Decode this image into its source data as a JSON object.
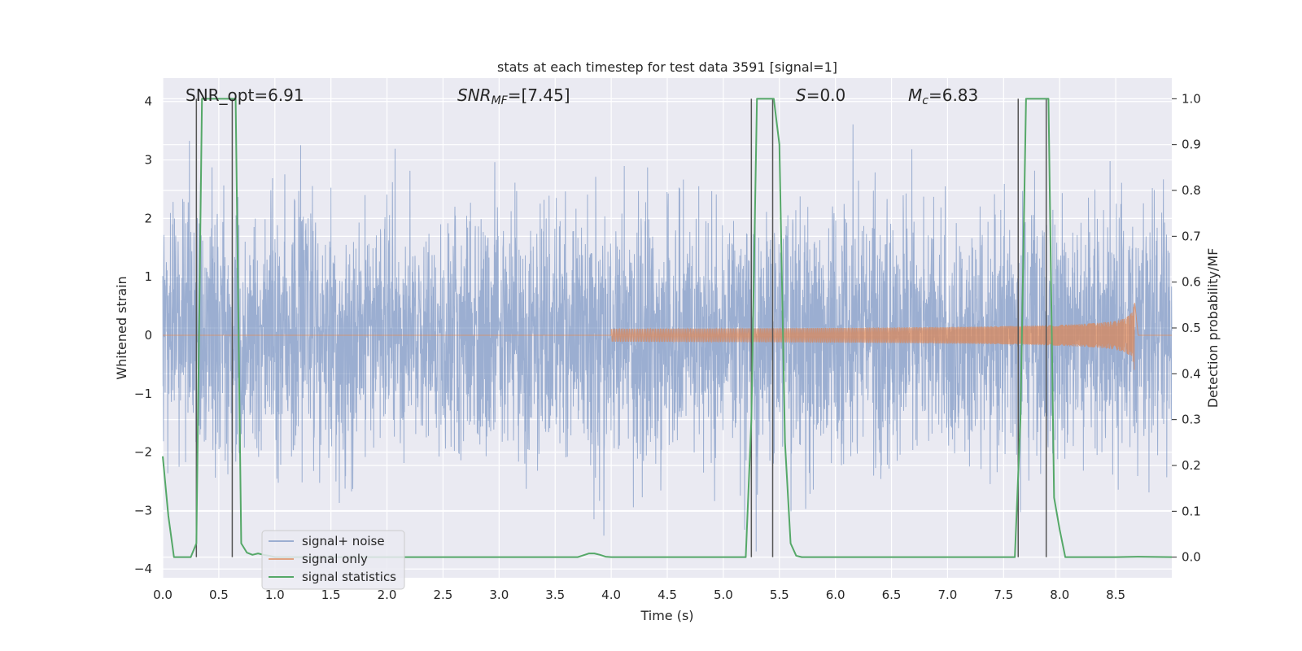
{
  "chart_data": {
    "type": "line",
    "title": "stats at each timestep for test data 3591 [signal=1]",
    "xlabel": "Time (s)",
    "ylabel": "Whitened strain",
    "ylabel_right": "Detection probability/MF",
    "xlim": [
      0.0,
      9.0
    ],
    "ylim": [
      -4.15,
      4.4
    ],
    "ylim_right": [
      -0.045,
      1.045
    ],
    "x_ticks": [
      "0.0",
      "0.5",
      "1.0",
      "1.5",
      "2.0",
      "2.5",
      "3.0",
      "3.5",
      "4.0",
      "4.5",
      "5.0",
      "5.5",
      "6.0",
      "6.5",
      "7.0",
      "7.5",
      "8.0",
      "8.5"
    ],
    "x_tick_values": [
      0,
      0.5,
      1,
      1.5,
      2,
      2.5,
      3,
      3.5,
      4,
      4.5,
      5,
      5.5,
      6,
      6.5,
      7,
      7.5,
      8,
      8.5
    ],
    "y_ticks": [
      "−4",
      "−3",
      "−2",
      "−1",
      "0",
      "1",
      "2",
      "3",
      "4"
    ],
    "y_tick_values": [
      -4,
      -3,
      -2,
      -1,
      0,
      1,
      2,
      3,
      4
    ],
    "y_ticks_right": [
      "0.0",
      "0.1",
      "0.2",
      "0.3",
      "0.4",
      "0.5",
      "0.6",
      "0.7",
      "0.8",
      "0.9",
      "1.0"
    ],
    "y_tick_values_right": [
      0,
      0.1,
      0.2,
      0.3,
      0.4,
      0.5,
      0.6,
      0.7,
      0.8,
      0.9,
      1.0
    ],
    "annotations": {
      "snr_opt": "SNR_opt=6.91",
      "snr_mf_base": "SNR",
      "snr_mf_sub": "MF",
      "snr_mf_value": "=[7.45]",
      "s_base": "S",
      "s_value": "=0.0",
      "mc_base": "M",
      "mc_sub": "c",
      "mc_value": "=6.83"
    },
    "legend": {
      "placement": "lower-left",
      "entries": [
        "signal+ noise",
        "signal only",
        "signal statistics"
      ]
    },
    "series": [
      {
        "name": "signal+ noise",
        "color": "#4c72b0",
        "kind": "noise",
        "amplitude_range": [
          -3.7,
          3.7
        ],
        "seed": 3591
      },
      {
        "name": "signal only",
        "color": "#dd8452",
        "kind": "chirp",
        "start": 4.0,
        "merger": 8.67,
        "end_amplitude": 0.68
      },
      {
        "name": "signal statistics",
        "color": "#55a868",
        "axis": "right",
        "x": [
          0.0,
          0.05,
          0.1,
          0.15,
          0.2,
          0.25,
          0.3,
          0.35,
          0.4,
          0.45,
          0.5,
          0.55,
          0.6,
          0.65,
          0.7,
          0.75,
          0.8,
          0.85,
          0.9,
          0.95,
          1.0,
          1.5,
          2.0,
          2.5,
          3.0,
          3.5,
          3.7,
          3.8,
          3.85,
          3.9,
          3.95,
          4.0,
          4.5,
          5.0,
          5.2,
          5.25,
          5.3,
          5.35,
          5.4,
          5.45,
          5.5,
          5.55,
          5.6,
          5.65,
          5.7,
          6.0,
          6.5,
          7.0,
          7.5,
          7.6,
          7.65,
          7.7,
          7.75,
          7.8,
          7.85,
          7.9,
          7.95,
          8.0,
          8.05,
          8.1,
          8.5,
          8.7,
          9.0
        ],
        "values": [
          0.22,
          0.09,
          0.0,
          0.0,
          0.0,
          0.0,
          0.03,
          1.0,
          1.0,
          1.0,
          1.0,
          1.0,
          1.0,
          1.0,
          0.03,
          0.01,
          0.005,
          0.008,
          0.005,
          0.003,
          0.0,
          0.0,
          0.0,
          0.0,
          0.0,
          0.0,
          0.0,
          0.008,
          0.008,
          0.005,
          0.001,
          0.0,
          0.0,
          0.0,
          0.0,
          0.3,
          1.0,
          1.0,
          1.0,
          1.0,
          0.9,
          0.25,
          0.03,
          0.003,
          0.0,
          0.0,
          0.0,
          0.0,
          0.0,
          0.0,
          0.3,
          1.0,
          1.0,
          1.0,
          1.0,
          1.0,
          0.13,
          0.06,
          0.0,
          0.0,
          0.0,
          0.001,
          0.0
        ]
      }
    ],
    "vertical_lines": [
      0.3,
      0.62,
      5.25,
      5.44,
      7.63,
      7.88
    ]
  }
}
